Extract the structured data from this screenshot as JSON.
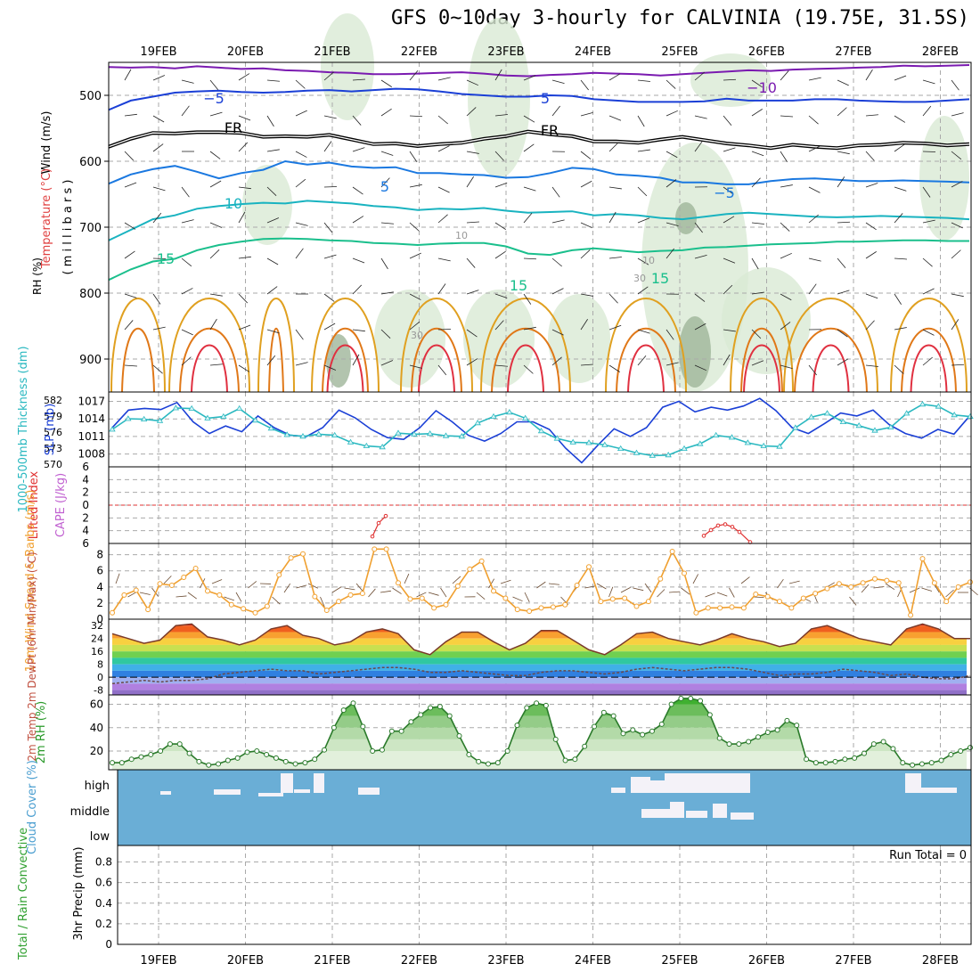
{
  "title": "GFS 0~10day 3-hourly for CALVINIA (19.75E, 31.5S)",
  "dates": [
    "19FEB",
    "20FEB",
    "21FEB",
    "22FEB",
    "23FEB",
    "24FEB",
    "25FEB",
    "26FEB",
    "27FEB",
    "28FEB"
  ],
  "run_total_label": "Run Total = 0",
  "colors": {
    "temp_line": "#1a3fd6",
    "freezing": "#000000",
    "t5": "#1a78e0",
    "t10": "#19b3c0",
    "t15": "#1abf8c",
    "t20": "#e0a020",
    "t25": "#e07818",
    "t30": "#e03040",
    "t_minus10": "#7a1ab0",
    "slp": "#1a3fd6",
    "thickness": "#2ab8c0",
    "lifted": "#e03030",
    "wind10": "#f0a030",
    "rh2m": "#3cb040",
    "cloud_bg": "#6aaed6"
  },
  "chart_data": [
    {
      "type": "line",
      "panel": "upper-air",
      "ylabel": "( m i l l i b a r s )",
      "side_labels": [
        "Wind (m/s)",
        "Temperature (°C)",
        "RH (%)"
      ],
      "yticks": [
        500,
        600,
        700,
        800,
        900
      ],
      "ylim": [
        950,
        450
      ],
      "contour_labels": [
        "−5",
        "5",
        "FR",
        "FR",
        "−10",
        "5",
        "−5",
        "10",
        "15",
        "15",
        "15",
        "10",
        "30",
        "10",
        "30"
      ],
      "series": [
        {
          "name": "-10",
          "values": [
            457,
            458,
            457,
            459,
            456,
            458,
            460,
            459,
            462,
            463,
            465,
            466,
            468,
            468,
            467,
            466,
            465,
            467,
            470,
            471,
            469,
            468,
            466,
            467,
            468,
            470,
            468,
            466,
            464,
            462,
            463,
            461,
            460,
            459,
            458,
            457,
            455,
            456,
            455,
            454
          ]
        },
        {
          "name": "-5",
          "values": [
            522,
            508,
            502,
            496,
            494,
            493,
            495,
            496,
            495,
            493,
            492,
            494,
            492,
            490,
            491,
            494,
            498,
            500,
            502,
            502,
            500,
            501,
            506,
            508,
            510,
            510,
            510,
            509,
            505,
            508,
            508,
            508,
            506,
            506,
            508,
            509,
            510,
            510,
            508,
            506
          ]
        },
        {
          "name": "FR",
          "values": [
            578,
            566,
            557,
            558,
            556,
            556,
            557,
            563,
            562,
            563,
            560,
            567,
            574,
            573,
            577,
            574,
            572,
            566,
            562,
            555,
            559,
            562,
            570,
            570,
            572,
            567,
            563,
            568,
            573,
            576,
            580,
            575,
            578,
            580,
            576,
            575,
            572,
            573,
            576,
            574
          ]
        },
        {
          "name": "5",
          "values": [
            634,
            620,
            612,
            607,
            616,
            626,
            618,
            613,
            600,
            605,
            602,
            608,
            610,
            609,
            618,
            618,
            620,
            621,
            625,
            624,
            618,
            610,
            612,
            620,
            622,
            625,
            632,
            632,
            635,
            635,
            630,
            627,
            626,
            628,
            630,
            630,
            629,
            630,
            631,
            632
          ]
        },
        {
          "name": "10",
          "values": [
            720,
            704,
            688,
            682,
            672,
            668,
            665,
            663,
            664,
            660,
            662,
            664,
            668,
            670,
            674,
            672,
            673,
            671,
            675,
            678,
            677,
            676,
            682,
            680,
            682,
            686,
            688,
            684,
            680,
            678,
            680,
            682,
            684,
            685,
            684,
            683,
            684,
            685,
            686,
            688
          ]
        },
        {
          "name": "15",
          "values": [
            780,
            764,
            752,
            748,
            735,
            727,
            722,
            718,
            717,
            718,
            720,
            721,
            724,
            725,
            727,
            725,
            724,
            724,
            729,
            740,
            742,
            735,
            732,
            735,
            738,
            736,
            735,
            731,
            730,
            728,
            726,
            725,
            724,
            722,
            722,
            721,
            720,
            720,
            721,
            721
          ]
        }
      ]
    },
    {
      "type": "line",
      "panel": "slp-thickness",
      "ylabel_left": "1000-500mb Thickness (dm)",
      "ylabel_right": "SLP (mb)",
      "yticks_thickness": [
        570,
        573,
        576,
        579,
        582
      ],
      "yticks_slp": [
        1008,
        1011,
        1014,
        1017
      ],
      "series": [
        {
          "name": "SLP",
          "values": [
            1012.5,
            1015.5,
            1015.8,
            1015.6,
            1016.8,
            1013.5,
            1011.5,
            1012.8,
            1011.8,
            1014.5,
            1012.5,
            1011.2,
            1011,
            1012.5,
            1015.5,
            1014.2,
            1012.2,
            1010.8,
            1010.5,
            1012.5,
            1015.4,
            1013.5,
            1011.2,
            1010.2,
            1011.5,
            1013.5,
            1013.5,
            1012.2,
            1009,
            1006.5,
            1009.5,
            1012.3,
            1011,
            1012.5,
            1016,
            1017,
            1015.2,
            1016,
            1015.5,
            1016.2,
            1017.5,
            1015.4,
            1012.5,
            1011.5,
            1013.2,
            1015,
            1014.5,
            1015.5,
            1013,
            1011.5,
            1010.7,
            1012.2,
            1011.4,
            1014.6
          ]
        },
        {
          "name": "1000-500mb Thickness",
          "values": [
            576.5,
            578.5,
            578.4,
            578.1,
            580.5,
            580.4,
            578.6,
            578.9,
            580.4,
            578.2,
            576.7,
            575.5,
            575.2,
            575.6,
            575.4,
            574.1,
            573.4,
            573.2,
            575.8,
            575.6,
            575.7,
            575.3,
            575.2,
            577.7,
            578.9,
            579.7,
            578.6,
            576.2,
            574.8,
            574.1,
            574,
            573.6,
            572.9,
            572.1,
            571.6,
            571.7,
            572.9,
            573.8,
            575.4,
            575,
            574,
            573.4,
            573.3,
            576.8,
            578.8,
            579.5,
            577.9,
            577.2,
            576.3,
            576.9,
            579.5,
            581.2,
            580.8,
            579.2,
            578.9
          ]
        }
      ]
    },
    {
      "type": "line",
      "panel": "lifted-index",
      "ylabel_left": "Lifted Index",
      "ylabel_right": "CAPE (J/kg)",
      "yticks": [
        -6,
        -4,
        -2,
        0,
        2,
        4,
        6
      ],
      "ylim": [
        6,
        -6
      ],
      "series": [
        {
          "name": "Lifted Index",
          "values": [
            4.9,
            2.8,
            1.7
          ]
        },
        {
          "name": "Lifted Index (25FEB)",
          "values": [
            4.8,
            3.9,
            3.2,
            3.0,
            3.4,
            4.2,
            5.8
          ]
        }
      ]
    },
    {
      "type": "line",
      "panel": "wind10m",
      "ylabel": "10m Wind Speed & Barbs (m/s)",
      "yticks": [
        0,
        2,
        4,
        6,
        8
      ],
      "ylim": [
        0,
        9.4
      ],
      "series": [
        {
          "name": "10m Wind Speed",
          "values": [
            0.8,
            3.0,
            3.6,
            1.2,
            4.4,
            4.2,
            5.2,
            6.3,
            3.5,
            3.0,
            1.8,
            1.3,
            0.8,
            1.6,
            5.5,
            7.6,
            8.1,
            2.8,
            1.1,
            2.2,
            3.0,
            3.2,
            8.7,
            8.7,
            4.5,
            2.5,
            2.6,
            1.4,
            1.8,
            4.1,
            6.2,
            7.2,
            3.5,
            2.6,
            1.2,
            1.0,
            1.4,
            1.5,
            1.8,
            4.2,
            6.5,
            2.2,
            2.5,
            2.6,
            1.6,
            2.2,
            5.0,
            8.4,
            5.7,
            0.8,
            1.4,
            1.4,
            1.5,
            1.4,
            3.1,
            2.8,
            2.2,
            1.4,
            2.6,
            3.2,
            3.8,
            4.4,
            4.0,
            4.5,
            5.0,
            4.8,
            4.5,
            0.5,
            7.5,
            4.5,
            2.2,
            4.0,
            4.6
          ]
        }
      ]
    },
    {
      "type": "area",
      "panel": "temp-dewpt",
      "ylabel": "2m Temp 2m DewPt (6hr Min/Max) (°C)",
      "yticks": [
        -8,
        0,
        8,
        16,
        24,
        32
      ],
      "ylim": [
        -11,
        36
      ],
      "series": [
        {
          "name": "2m Temp",
          "values": [
            27,
            24,
            21,
            23,
            32,
            33,
            25,
            23,
            20,
            23,
            30,
            32,
            26,
            24,
            20,
            22,
            28,
            30,
            27,
            17,
            14,
            22,
            28,
            28,
            22,
            17,
            21,
            29,
            29,
            23,
            17,
            14,
            20,
            27,
            28,
            24,
            22,
            20,
            23,
            27,
            24,
            22,
            19,
            21,
            30,
            32,
            28,
            24,
            22,
            20,
            30,
            33,
            30,
            24,
            24
          ]
        },
        {
          "name": "2m DewPt",
          "values": [
            -4,
            -3,
            -2,
            -3,
            -2,
            -2,
            -1,
            2,
            3,
            4,
            5,
            4,
            4,
            2,
            3,
            4,
            5,
            6,
            6,
            5,
            3,
            3,
            4,
            3,
            2,
            1,
            1,
            3,
            4,
            4,
            3,
            2,
            3,
            5,
            6,
            5,
            4,
            5,
            6,
            6,
            5,
            3,
            1,
            2,
            2,
            3,
            5,
            4,
            3,
            1,
            2,
            0,
            -1,
            -1,
            1
          ]
        }
      ]
    },
    {
      "type": "area",
      "panel": "rh2m",
      "ylabel": "2m RH (%)",
      "yticks": [
        20,
        40,
        60
      ],
      "ylim": [
        4,
        68
      ],
      "series": [
        {
          "name": "2m RH",
          "values": [
            10,
            10,
            13,
            15,
            17,
            20,
            26,
            26,
            18,
            11,
            8,
            9,
            12,
            14,
            19,
            20,
            17,
            14,
            11,
            9,
            10,
            13,
            21,
            40,
            55,
            61,
            41,
            20,
            21,
            37,
            37,
            45,
            51,
            57,
            58,
            50,
            33,
            17,
            11,
            9,
            10,
            20,
            42,
            57,
            61,
            59,
            30,
            12,
            13,
            24,
            41,
            53,
            50,
            35,
            38,
            34,
            37,
            43,
            60,
            65,
            65,
            63,
            51,
            31,
            26,
            26,
            28,
            32,
            36,
            38,
            46,
            42,
            13,
            10,
            10,
            11,
            13,
            14,
            18,
            26,
            28,
            22,
            10,
            8,
            9,
            10,
            12,
            17,
            20,
            23
          ]
        }
      ]
    },
    {
      "type": "heatmap",
      "panel": "cloud-cover",
      "ylabel": "Cloud Cover (%)",
      "levels": [
        "high",
        "middle",
        "low"
      ]
    },
    {
      "type": "bar",
      "panel": "precip",
      "ylabel_left": "Total / Rain Convective",
      "ylabel_right": "3hr Precip (mm)",
      "yticks": [
        0,
        0.2,
        0.4,
        0.6,
        0.8
      ],
      "ylim": [
        0,
        0.96
      ],
      "values": []
    }
  ]
}
